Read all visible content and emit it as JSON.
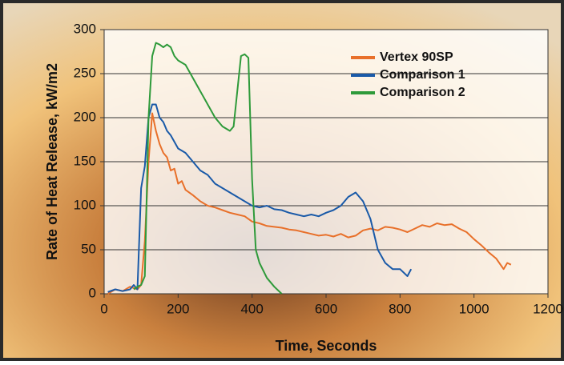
{
  "chart_data": {
    "type": "line",
    "x_label": "Time, Seconds",
    "y_label": "Rate of Heat Release, kW/m2",
    "xlim": [
      0,
      1200
    ],
    "xticks": [
      0,
      200,
      400,
      600,
      800,
      1000,
      1200
    ],
    "ylim": [
      0,
      300
    ],
    "yticks": [
      0,
      50,
      100,
      150,
      200,
      250,
      300
    ],
    "grid": true,
    "legend": "upper right",
    "series": [
      {
        "name": "Vertex 90SP",
        "color": "#e8702a",
        "x": [
          10,
          30,
          50,
          70,
          90,
          100,
          110,
          120,
          130,
          140,
          150,
          160,
          170,
          180,
          190,
          200,
          210,
          220,
          240,
          260,
          280,
          300,
          320,
          340,
          360,
          380,
          400,
          420,
          440,
          460,
          480,
          500,
          520,
          540,
          560,
          580,
          600,
          620,
          640,
          660,
          680,
          700,
          720,
          740,
          760,
          780,
          800,
          820,
          840,
          860,
          880,
          900,
          920,
          940,
          960,
          980,
          1000,
          1020,
          1040,
          1060,
          1080,
          1090,
          1100
        ],
        "values": [
          0,
          5,
          3,
          8,
          5,
          10,
          60,
          150,
          205,
          185,
          170,
          160,
          155,
          140,
          142,
          125,
          128,
          118,
          112,
          105,
          100,
          98,
          95,
          92,
          90,
          88,
          82,
          80,
          77,
          76,
          75,
          73,
          72,
          70,
          68,
          66,
          67,
          65,
          68,
          64,
          66,
          72,
          74,
          72,
          76,
          75,
          73,
          70,
          74,
          78,
          76,
          80,
          78,
          79,
          74,
          70,
          62,
          55,
          47,
          40,
          28,
          35,
          33
        ]
      },
      {
        "name": "Comparison 1",
        "color": "#1a5aa8",
        "x": [
          10,
          30,
          50,
          70,
          80,
          90,
          100,
          110,
          120,
          130,
          140,
          150,
          160,
          170,
          180,
          200,
          220,
          240,
          260,
          280,
          300,
          320,
          340,
          360,
          380,
          400,
          420,
          440,
          460,
          480,
          500,
          520,
          540,
          560,
          580,
          600,
          620,
          640,
          660,
          680,
          700,
          720,
          740,
          760,
          780,
          800,
          820,
          830
        ],
        "values": [
          2,
          5,
          3,
          5,
          10,
          5,
          120,
          145,
          200,
          215,
          215,
          200,
          195,
          185,
          180,
          165,
          160,
          150,
          140,
          135,
          125,
          120,
          115,
          110,
          105,
          100,
          98,
          100,
          96,
          95,
          92,
          90,
          88,
          90,
          88,
          92,
          95,
          100,
          110,
          115,
          105,
          85,
          50,
          35,
          28,
          28,
          20,
          28
        ]
      },
      {
        "name": "Comparison 2",
        "color": "#2e9a3a",
        "x": [
          80,
          90,
          100,
          110,
          120,
          130,
          140,
          150,
          160,
          170,
          180,
          190,
          200,
          220,
          240,
          260,
          280,
          300,
          320,
          340,
          350,
          360,
          370,
          380,
          390,
          400,
          410,
          420,
          440,
          460,
          480
        ],
        "values": [
          5,
          8,
          10,
          20,
          200,
          270,
          285,
          283,
          280,
          283,
          280,
          270,
          265,
          260,
          245,
          230,
          215,
          200,
          190,
          185,
          190,
          230,
          270,
          272,
          268,
          130,
          50,
          35,
          18,
          8,
          0
        ]
      }
    ]
  }
}
